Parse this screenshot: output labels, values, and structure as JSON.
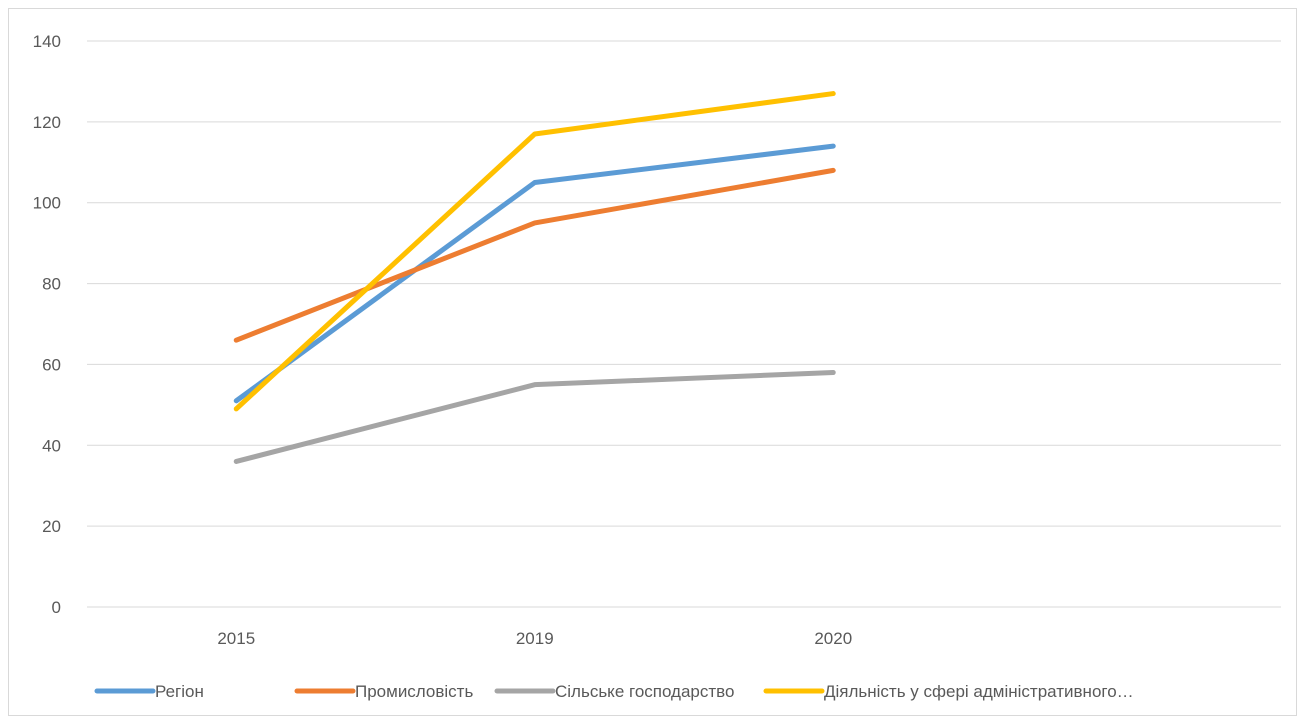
{
  "chart_data": {
    "type": "line",
    "categories": [
      "2015",
      "2019",
      "2020"
    ],
    "ylim": [
      0,
      140
    ],
    "yticks": [
      0,
      20,
      40,
      60,
      80,
      100,
      120,
      140
    ],
    "grid": true,
    "legend_position": "bottom",
    "series": [
      {
        "name": "Регіон",
        "color": "#5b9bd5",
        "values": [
          51,
          105,
          114
        ]
      },
      {
        "name": "Промисловість",
        "color": "#ed7d31",
        "values": [
          66,
          95,
          108
        ]
      },
      {
        "name": "Сільське господарство",
        "color": "#a5a5a5",
        "values": [
          36,
          55,
          58
        ]
      },
      {
        "name": "Діяльність у сфері адміністративного…",
        "color": "#ffc000",
        "values": [
          49,
          117,
          127
        ]
      }
    ]
  }
}
